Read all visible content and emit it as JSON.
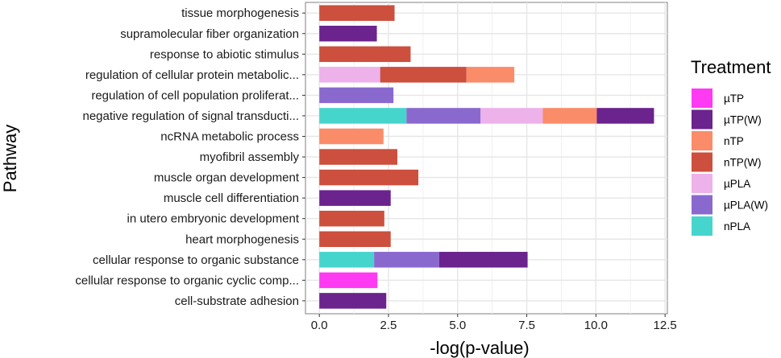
{
  "chart_data": {
    "type": "bar",
    "orientation": "horizontal",
    "stacked": true,
    "title": "",
    "xlabel": "-log(p-value)",
    "ylabel": "Pathway",
    "xlim": [
      -0.5,
      12.6
    ],
    "xticks": [
      0.0,
      2.5,
      5.0,
      7.5,
      10.0,
      12.5
    ],
    "xtick_labels": [
      "0.0",
      "2.5",
      "5.0",
      "7.5",
      "10.0",
      "12.5"
    ],
    "grid": true,
    "legend_title": "Treatment",
    "legend_position": "right",
    "legend": [
      {
        "name": "µTP",
        "color": "#FF3AF3"
      },
      {
        "name": "µTP(W)",
        "color": "#6B238D"
      },
      {
        "name": "nTP",
        "color": "#FB8C69"
      },
      {
        "name": "nTP(W)",
        "color": "#CD4F3D"
      },
      {
        "name": "µPLA",
        "color": "#EDB2EA"
      },
      {
        "name": "µPLA(W)",
        "color": "#8A69CF"
      },
      {
        "name": "nPLA",
        "color": "#46D5CD"
      }
    ],
    "categories": [
      "tissue morphogenesis",
      "supramolecular fiber organization",
      "response to abiotic stimulus",
      "regulation of cellular protein metabolic...",
      "regulation of cell population proliferat...",
      "negative regulation of signal transducti...",
      "ncRNA metabolic process",
      "myofibril assembly",
      "muscle organ development",
      "muscle cell differentiation",
      "in utero embryonic development",
      "heart morphogenesis",
      "cellular response to organic substance",
      "cellular response to organic cyclic comp...",
      "cell-substrate adhesion"
    ],
    "bars": [
      [
        {
          "series": "nTP(W)",
          "value": 2.72
        }
      ],
      [
        {
          "series": "µTP(W)",
          "value": 2.08
        }
      ],
      [
        {
          "series": "nTP(W)",
          "value": 3.3
        }
      ],
      [
        {
          "series": "µPLA",
          "value": 2.2
        },
        {
          "series": "nTP(W)",
          "value": 3.12
        },
        {
          "series": "nTP",
          "value": 1.73
        }
      ],
      [
        {
          "series": "µPLA(W)",
          "value": 2.68
        }
      ],
      [
        {
          "series": "nPLA",
          "value": 3.15
        },
        {
          "series": "µPLA(W)",
          "value": 2.68
        },
        {
          "series": "µPLA",
          "value": 2.25
        },
        {
          "series": "nTP",
          "value": 1.95
        },
        {
          "series": "µTP(W)",
          "value": 2.07
        }
      ],
      [
        {
          "series": "nTP",
          "value": 2.32
        }
      ],
      [
        {
          "series": "nTP(W)",
          "value": 2.82
        }
      ],
      [
        {
          "series": "nTP(W)",
          "value": 3.58
        }
      ],
      [
        {
          "series": "µTP(W)",
          "value": 2.58
        }
      ],
      [
        {
          "series": "nTP(W)",
          "value": 2.35
        }
      ],
      [
        {
          "series": "nTP(W)",
          "value": 2.58
        }
      ],
      [
        {
          "series": "nPLA",
          "value": 1.98
        },
        {
          "series": "µPLA(W)",
          "value": 2.35
        },
        {
          "series": "µTP(W)",
          "value": 3.2
        }
      ],
      [
        {
          "series": "µTP",
          "value": 2.1
        }
      ],
      [
        {
          "series": "µTP(W)",
          "value": 2.42
        }
      ]
    ]
  }
}
